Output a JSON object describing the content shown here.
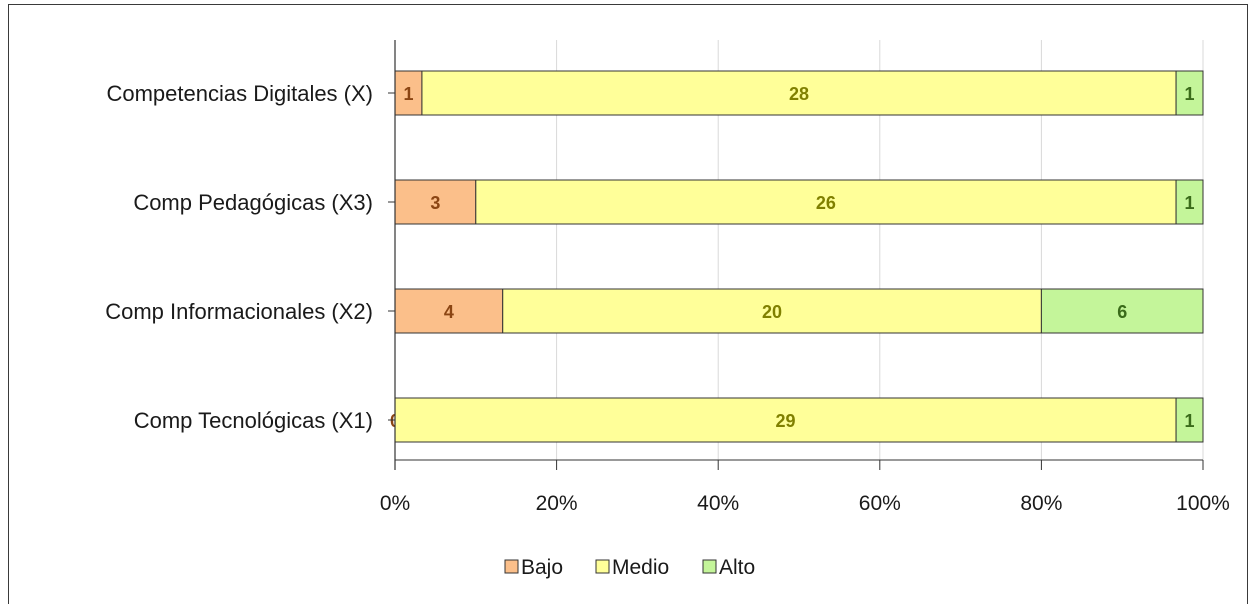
{
  "chart_data": {
    "type": "bar",
    "orientation": "horizontal",
    "stacked": "percent",
    "categories": [
      "Competencias Digitales (X)",
      "Comp Pedagógicas (X3)",
      "Comp Informacionales (X2)",
      "Comp Tecnológicas (X1)"
    ],
    "series": [
      {
        "name": "Bajo",
        "color": "#fbbf8a",
        "label_color": "#8b4513",
        "values": [
          1,
          3,
          4,
          0
        ]
      },
      {
        "name": "Medio",
        "color": "#ffff99",
        "label_color": "#808000",
        "values": [
          28,
          26,
          20,
          29
        ]
      },
      {
        "name": "Alto",
        "color": "#c4f59a",
        "label_color": "#3a6b1a",
        "values": [
          1,
          1,
          6,
          1
        ]
      }
    ],
    "x_ticks": [
      "0%",
      "20%",
      "40%",
      "60%",
      "80%",
      "100%"
    ],
    "xlim": [
      0,
      100
    ],
    "grid": true,
    "legend_position": "bottom",
    "title": "",
    "xlabel": "",
    "ylabel": ""
  }
}
